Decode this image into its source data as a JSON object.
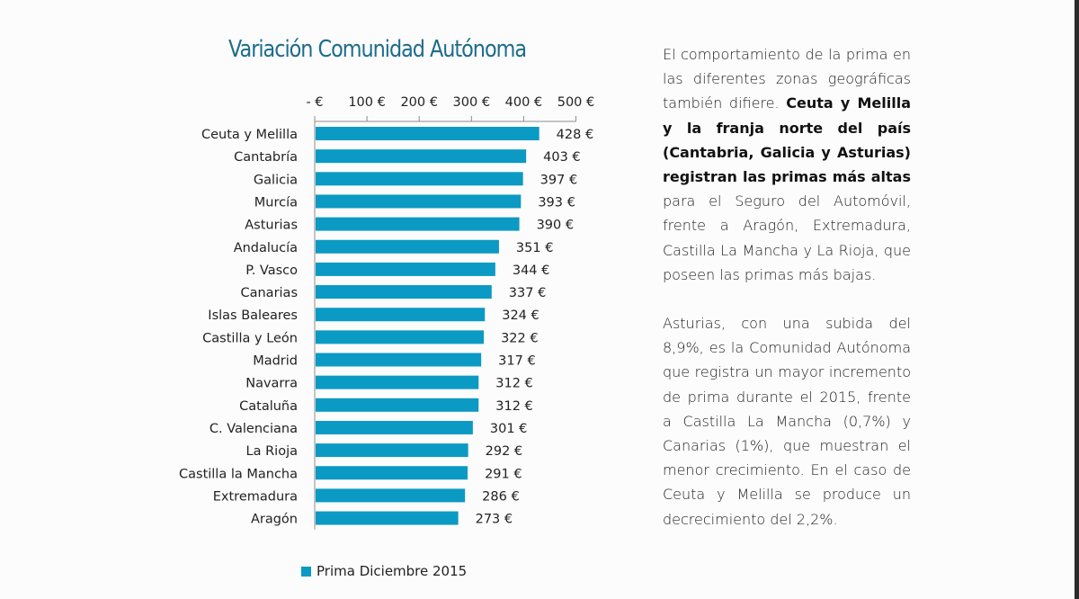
{
  "chart_data": {
    "type": "bar",
    "orientation": "horizontal",
    "title": "Variación Comunidad Autónoma",
    "xlabel": "",
    "ylabel": "",
    "xlim": [
      0,
      500
    ],
    "x_ticks": [
      0,
      100,
      200,
      300,
      400,
      500
    ],
    "x_tick_labels": [
      "- €",
      "100 €",
      "200 €",
      "300 €",
      "400 €",
      "500 €"
    ],
    "x_axis_position": "top",
    "grid": false,
    "legend_position": "bottom",
    "categories": [
      "Ceuta y Melilla",
      "Cantabría",
      "Galicia",
      "Murcía",
      "Asturias",
      "Andalucía",
      "P. Vasco",
      "Canarias",
      "Islas Baleares",
      "Castilla y León",
      "Madrid",
      "Navarra",
      "Cataluña",
      "C. Valenciana",
      "La Rioja",
      "Castilla la Mancha",
      "Extremadura",
      "Aragón"
    ],
    "series": [
      {
        "name": "Prima Diciembre 2015",
        "color": "#0b9ac3",
        "values": [
          428,
          403,
          397,
          393,
          390,
          351,
          344,
          337,
          324,
          322,
          317,
          312,
          312,
          301,
          292,
          291,
          286,
          273
        ],
        "data_labels": [
          "428 €",
          "403 €",
          "397 €",
          "393 €",
          "390 €",
          "351 €",
          "344 €",
          "337 €",
          "324 €",
          "322 €",
          "317 €",
          "312 €",
          "312 €",
          "301 €",
          "292 €",
          "291 €",
          "286 €",
          "273 €"
        ]
      }
    ]
  },
  "legend": {
    "label": "Prima Diciembre 2015"
  },
  "text": {
    "p1_a": "El comportamiento de la prima en las diferentes zonas geográficas también difiere. ",
    "p1_bold": "Ceuta y Melilla y la franja norte del país (Cantabria, Galicia y Asturias) registran las primas más altas",
    "p1_b": " para el Seguro del Automóvil, frente a Aragón, Extremadura, Castilla La Mancha y La Rioja, que poseen las primas más bajas.",
    "p2": "Asturias, con una subida del 8,9%, es la Comunidad Autónoma que registra un mayor incremento de prima durante el 2015, frente a Castilla La Mancha (0,7%) y Canarias (1%), que muestran el menor crecimiento. En el caso de Ceuta y Melilla se produce un decrecimiento del 2,2%."
  },
  "colors": {
    "title": "#1d6c8c",
    "bar": "#0b9ac3",
    "axis": "#8c8c8c"
  }
}
